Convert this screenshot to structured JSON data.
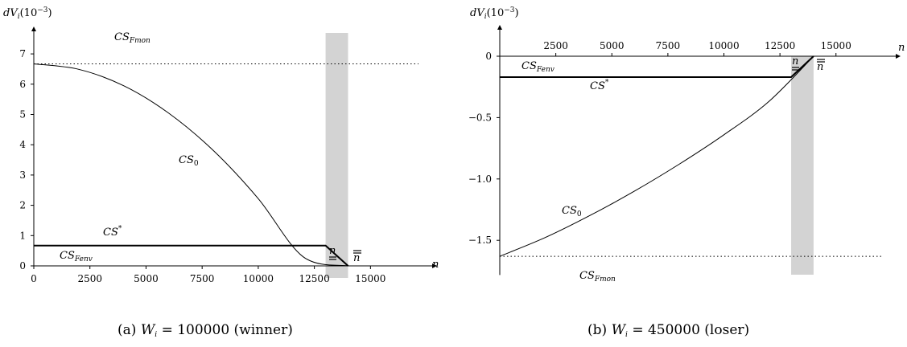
{
  "chart_data": [
    {
      "type": "line",
      "caption_tag": "(a)",
      "caption_var": "W",
      "caption_sub": "i",
      "caption_rest": " = 100000 (winner)",
      "ylabel_main": "dV",
      "ylabel_sub": "i",
      "ylabel_unit": "(10",
      "ylabel_exp": "−3",
      "ylabel_close": ")",
      "xlabel": "n",
      "xlim": [
        0,
        17000
      ],
      "ylim": [
        0,
        7
      ],
      "x_ticks": [
        0,
        2500,
        5000,
        7500,
        10000,
        12500,
        15000
      ],
      "x_tick_labels": [
        "0",
        "2500",
        "5000",
        "7500",
        "10000",
        "12500",
        "15000"
      ],
      "y_ticks": [
        0,
        1,
        2,
        3,
        4,
        5,
        6,
        7
      ],
      "y_tick_labels": [
        "0",
        "1",
        "2",
        "3",
        "4",
        "5",
        "6",
        "7"
      ],
      "shaded_band": [
        13000,
        14000
      ],
      "underline_n_label": "n",
      "overline_n_label": "n",
      "curves": {
        "CS_0": {
          "label_main": "CS",
          "label_sub": "0",
          "x": [
            0,
            2000,
            4000,
            6000,
            8000,
            10000,
            12000,
            14000
          ],
          "y": [
            6.67,
            6.49,
            5.95,
            5.05,
            3.81,
            2.22,
            0.3,
            0.0
          ]
        },
        "CS_star": {
          "label_main": "CS",
          "label_sup": "*",
          "x": [
            0,
            13000,
            14000
          ],
          "y": [
            0.67,
            0.67,
            0.0
          ]
        },
        "CS_Fmon": {
          "label_main": "CS",
          "label_sub": "Fmon",
          "y": 6.67
        },
        "CS_Fenv": {
          "label_main": "CS",
          "label_sub": "Fenv",
          "y": 0.0
        }
      }
    },
    {
      "type": "line",
      "caption_tag": "(b)",
      "caption_var": "W",
      "caption_sub": "i",
      "caption_rest": " = 450000 (loser)",
      "ylabel_main": "dV",
      "ylabel_sub": "i",
      "ylabel_unit": "(10",
      "ylabel_exp": "−3",
      "ylabel_close": ")",
      "xlabel": "n",
      "xlim": [
        0,
        17000
      ],
      "ylim": [
        -1.75,
        0.2
      ],
      "x_ticks": [
        2500,
        5000,
        7500,
        10000,
        12500,
        15000
      ],
      "x_tick_labels": [
        "2500",
        "5000",
        "7500",
        "10000",
        "12500",
        "15000"
      ],
      "y_ticks": [
        0,
        -0.5,
        -1.0,
        -1.5
      ],
      "y_tick_labels": [
        "0",
        "−0.5",
        "−1.0",
        "−1.5"
      ],
      "shaded_band": [
        13000,
        14000
      ],
      "underline_n_label": "n",
      "overline_n_label": "n",
      "curves": {
        "CS_0": {
          "label_main": "CS",
          "label_sub": "0",
          "x": [
            0,
            2000,
            4000,
            6000,
            8000,
            10000,
            12000,
            14000
          ],
          "y": [
            -1.63,
            -1.48,
            -1.3,
            -1.1,
            -0.88,
            -0.64,
            -0.37,
            0.0
          ]
        },
        "CS_star": {
          "label_main": "CS",
          "label_sup": "*",
          "x": [
            0,
            13000,
            14000
          ],
          "y": [
            -0.17,
            -0.17,
            0.0
          ]
        },
        "CS_Fmon": {
          "label_main": "CS",
          "label_sub": "Fmon",
          "y": -1.63
        },
        "CS_Fenv": {
          "label_main": "CS",
          "label_sub": "Fenv",
          "y": 0.0
        }
      }
    }
  ]
}
